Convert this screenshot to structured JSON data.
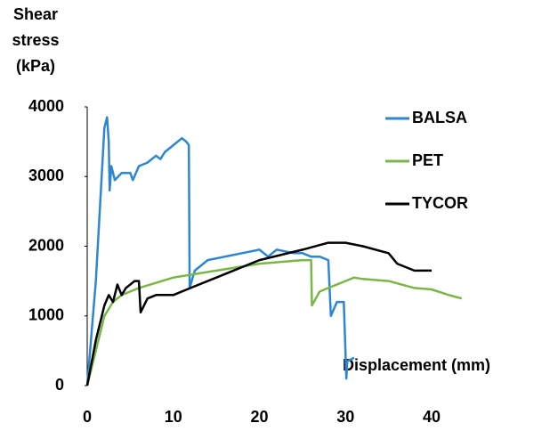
{
  "chart_data": {
    "type": "line",
    "x_label": "Displacement (mm)",
    "y_label": "Shear stress (kPa)",
    "xlim": [
      0,
      40
    ],
    "ylim": [
      0,
      4000
    ],
    "xticks": [
      0,
      10,
      20,
      30,
      40
    ],
    "yticks": [
      0,
      1000,
      2000,
      3000,
      4000
    ],
    "grid": false,
    "legend": "upper right",
    "series": [
      {
        "name": "BALSA",
        "color": "#2e86d0",
        "x": [
          0,
          1,
          2,
          2.3,
          2.5,
          2.6,
          2.8,
          3.2,
          4,
          5,
          5.3,
          6,
          7,
          8,
          8.5,
          9,
          10,
          11,
          11.5,
          11.8,
          11.9,
          12.5,
          14,
          16,
          18,
          20,
          21,
          22,
          24,
          25,
          26,
          27,
          28,
          28.3,
          29,
          29.8,
          30.1,
          30.2,
          31
        ],
        "values": [
          0,
          1500,
          3700,
          3850,
          3500,
          2800,
          3150,
          2950,
          3050,
          3050,
          2950,
          3150,
          3200,
          3300,
          3250,
          3350,
          3450,
          3550,
          3500,
          3450,
          1400,
          1650,
          1800,
          1850,
          1900,
          1950,
          1850,
          1950,
          1900,
          1900,
          1850,
          1850,
          1800,
          1000,
          1200,
          1200,
          100,
          350,
          400
        ]
      },
      {
        "name": "PET",
        "color": "#7ab648",
        "x": [
          0,
          1,
          2,
          3,
          4,
          6,
          10,
          15,
          20,
          25,
          26,
          26.1,
          27,
          28,
          30,
          31,
          32,
          35,
          38,
          40,
          42,
          43.5
        ],
        "values": [
          0,
          500,
          1000,
          1200,
          1300,
          1400,
          1550,
          1650,
          1750,
          1800,
          1800,
          1150,
          1350,
          1400,
          1500,
          1550,
          1530,
          1500,
          1400,
          1380,
          1300,
          1250
        ]
      },
      {
        "name": "TYCOR",
        "color": "#000000",
        "x": [
          0,
          1,
          2,
          2.5,
          3,
          3.5,
          4,
          4.5,
          5,
          5.5,
          6,
          6.2,
          7,
          8,
          9,
          10,
          12,
          15,
          20,
          25,
          28,
          29,
          30,
          32,
          35,
          36,
          37,
          38,
          40
        ],
        "values": [
          0,
          650,
          1150,
          1300,
          1200,
          1450,
          1300,
          1400,
          1450,
          1500,
          1500,
          1050,
          1250,
          1300,
          1300,
          1300,
          1400,
          1550,
          1800,
          1950,
          2050,
          2050,
          2050,
          2000,
          1900,
          1750,
          1700,
          1650,
          1650
        ]
      }
    ]
  }
}
